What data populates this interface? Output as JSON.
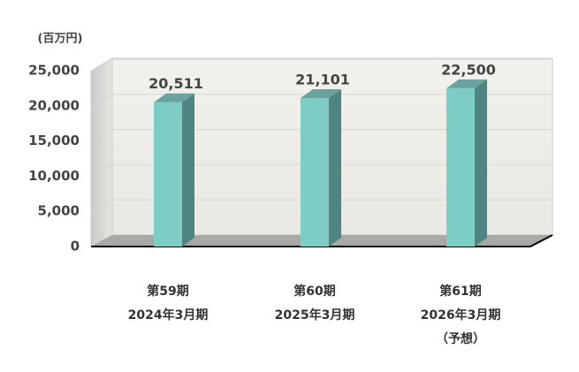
{
  "chart_data": {
    "type": "bar3d",
    "y_label": "(百万円)",
    "categories": [
      [
        "第59期",
        "2024年3月期"
      ],
      [
        "第60期",
        "2025年3月期"
      ],
      [
        "第61期",
        "2026年3月期",
        "（予想）"
      ]
    ],
    "values": [
      20511,
      21101,
      22500
    ],
    "value_labels": [
      "20,511",
      "21,101",
      "22,500"
    ],
    "color": "#7ecdc4",
    "ylim": [
      0,
      25000
    ],
    "yticks": [
      0,
      {
        "value": 5000,
        "label": "5,000"
      },
      {
        "value": 10000,
        "label": "10,000"
      },
      {
        "value": 15000,
        "label": "15,000"
      },
      {
        "value": 20000,
        "label": "20,000"
      },
      {
        "value": 25000,
        "label": "25,000"
      }
    ],
    "grid": true
  }
}
